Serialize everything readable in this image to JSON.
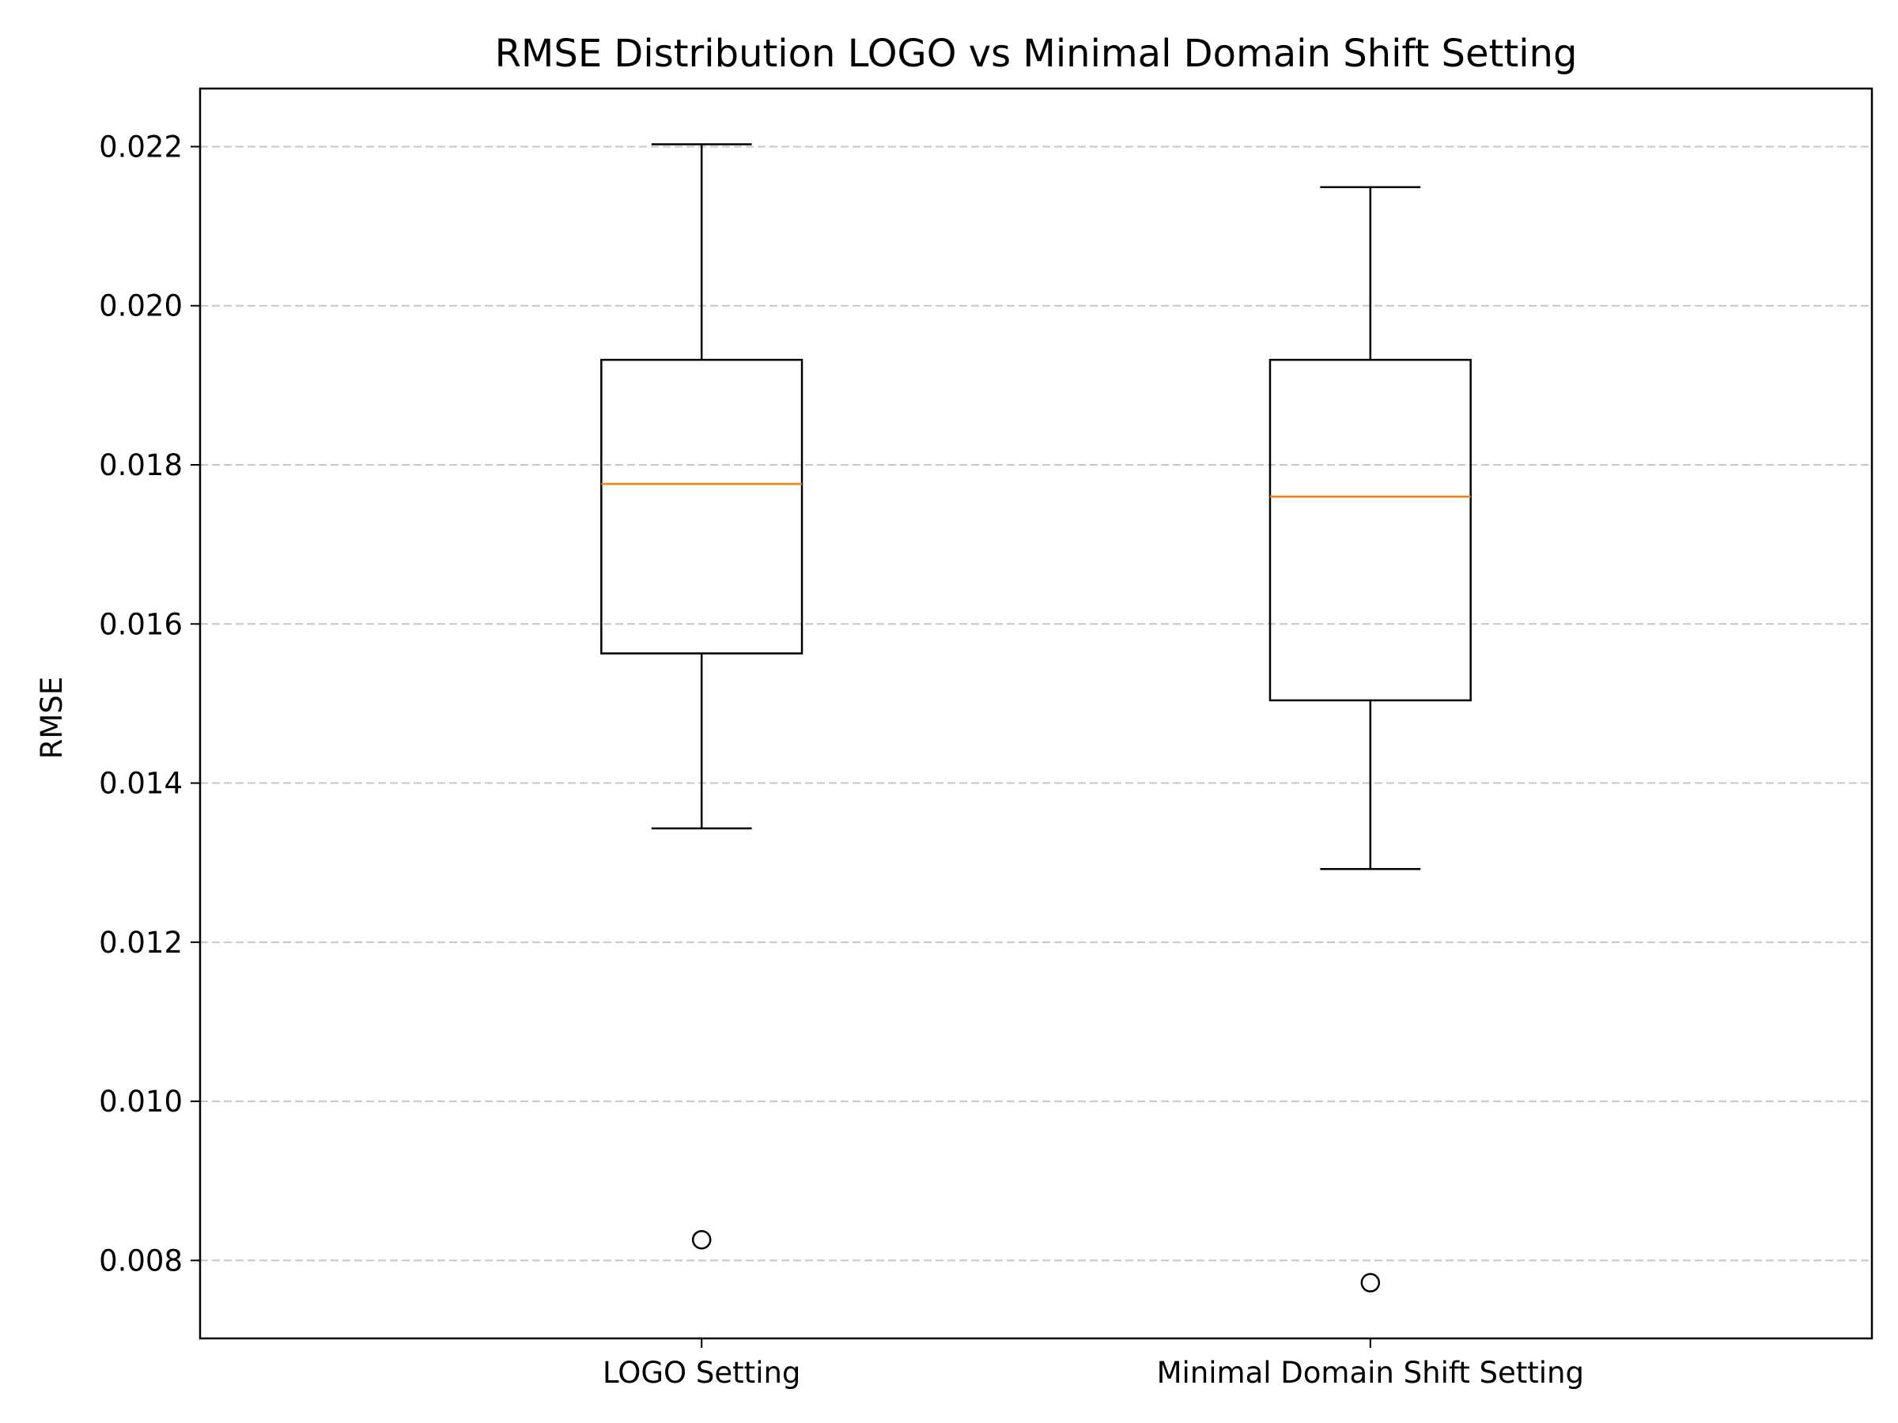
{
  "chart_data": {
    "type": "box",
    "title": "RMSE Distribution LOGO vs Minimal Domain Shift Setting",
    "xlabel": "",
    "ylabel": "RMSE",
    "categories": [
      "LOGO Setting",
      "Minimal Domain Shift Setting"
    ],
    "ylim": [
      0.00702,
      0.02273
    ],
    "yticks": [
      0.008,
      0.01,
      0.012,
      0.014,
      0.016,
      0.018,
      0.02,
      0.022
    ],
    "ytick_labels": [
      "0.008",
      "0.010",
      "0.012",
      "0.014",
      "0.016",
      "0.018",
      "0.020",
      "0.022"
    ],
    "grid": {
      "axis": "y",
      "style": "dashed"
    },
    "boxes": [
      {
        "category": "LOGO Setting",
        "whisker_low": 0.01343,
        "q1": 0.01563,
        "median": 0.01776,
        "q3": 0.01932,
        "whisker_high": 0.02203,
        "outliers": [
          0.00826
        ]
      },
      {
        "category": "Minimal Domain Shift Setting",
        "whisker_low": 0.01292,
        "q1": 0.01504,
        "median": 0.0176,
        "q3": 0.01932,
        "whisker_high": 0.02149,
        "outliers": [
          0.00772
        ]
      }
    ],
    "colors": {
      "box": "#000000",
      "median": "#ff7f0e",
      "grid": "#b0b0b0"
    }
  }
}
